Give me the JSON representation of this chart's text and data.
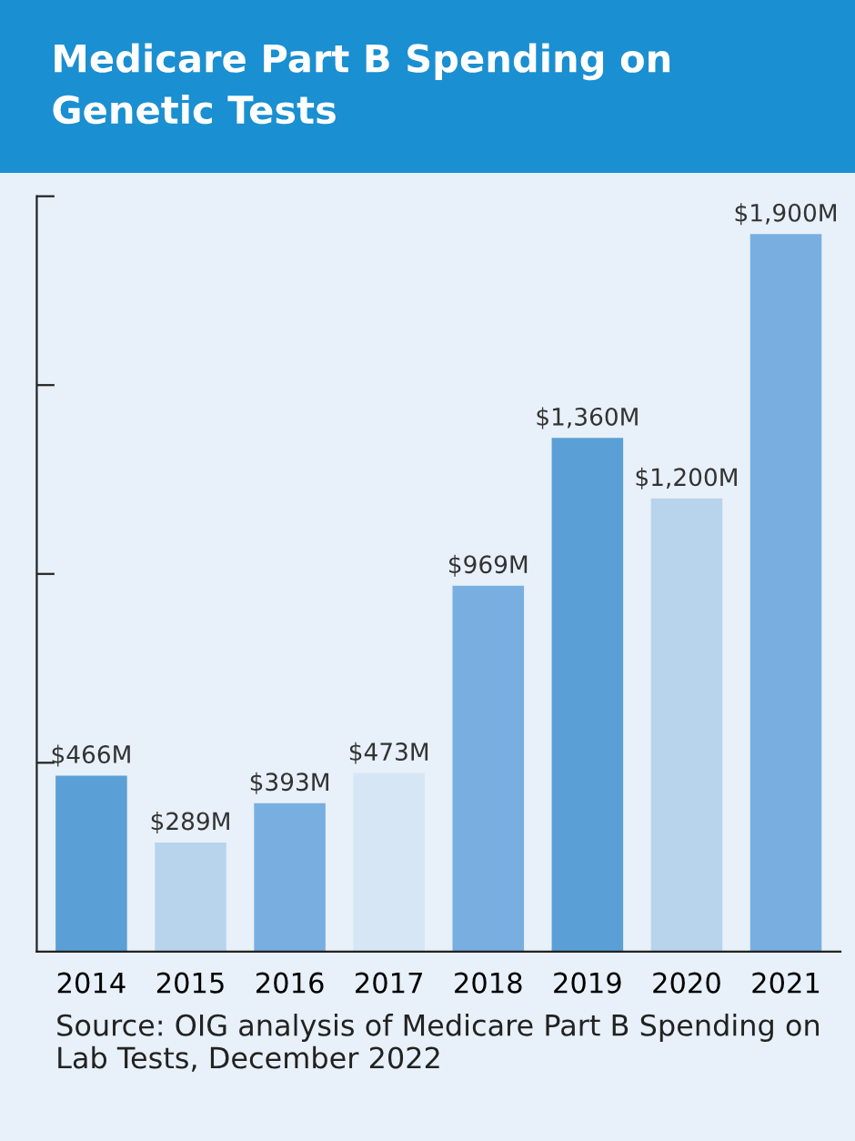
{
  "chart_data": {
    "type": "bar",
    "title": "Medicare Part B Spending on\nGenetic Tests",
    "categories": [
      "2014",
      "2015",
      "2016",
      "2017",
      "2018",
      "2019",
      "2020",
      "2021"
    ],
    "values": [
      466,
      289,
      393,
      473,
      969,
      1360,
      1200,
      1900
    ],
    "colors": [
      "#5aa0d6",
      "#b8d4ec",
      "#78afe0",
      "#d6e6f5",
      "#78afe0",
      "#5aa0d6",
      "#b8d4ec",
      "#78afe0"
    ],
    "value_labels": [
      "$466M",
      "$289M",
      "$393M",
      "$473M",
      "$969M",
      "$1,360M",
      "$1,200M",
      "$1,900M"
    ],
    "ylim": [
      0,
      2000
    ],
    "yticks": [
      {
        "value": 500,
        "label": null
      },
      {
        "value": 1000,
        "label": null
      },
      {
        "value": 1500,
        "label": null
      },
      {
        "value": 2000,
        "label": null
      }
    ],
    "grid": false,
    "annotations": [
      "Source: OIG analysis of Medicare Part B Spending on Lab Tests, December 2022"
    ]
  }
}
